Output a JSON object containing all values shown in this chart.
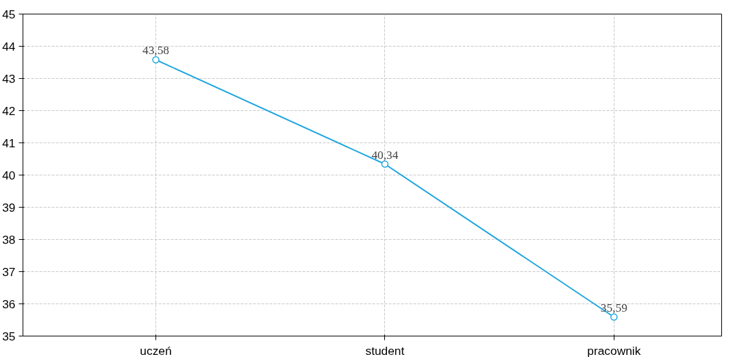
{
  "chart_data": {
    "type": "line",
    "categories": [
      "uczeń",
      "student",
      "pracownik"
    ],
    "series": [
      {
        "color": "#1ea6e0",
        "values": [
          43.58,
          40.34,
          35.59
        ],
        "value_labels": [
          "43,58",
          "40,34",
          "35,59"
        ]
      }
    ],
    "ylim": [
      35,
      45
    ],
    "yticks": [
      35,
      36,
      37,
      38,
      39,
      40,
      41,
      42,
      43,
      44,
      45
    ],
    "grid": true,
    "marker": "circle",
    "line_style": "solid"
  }
}
